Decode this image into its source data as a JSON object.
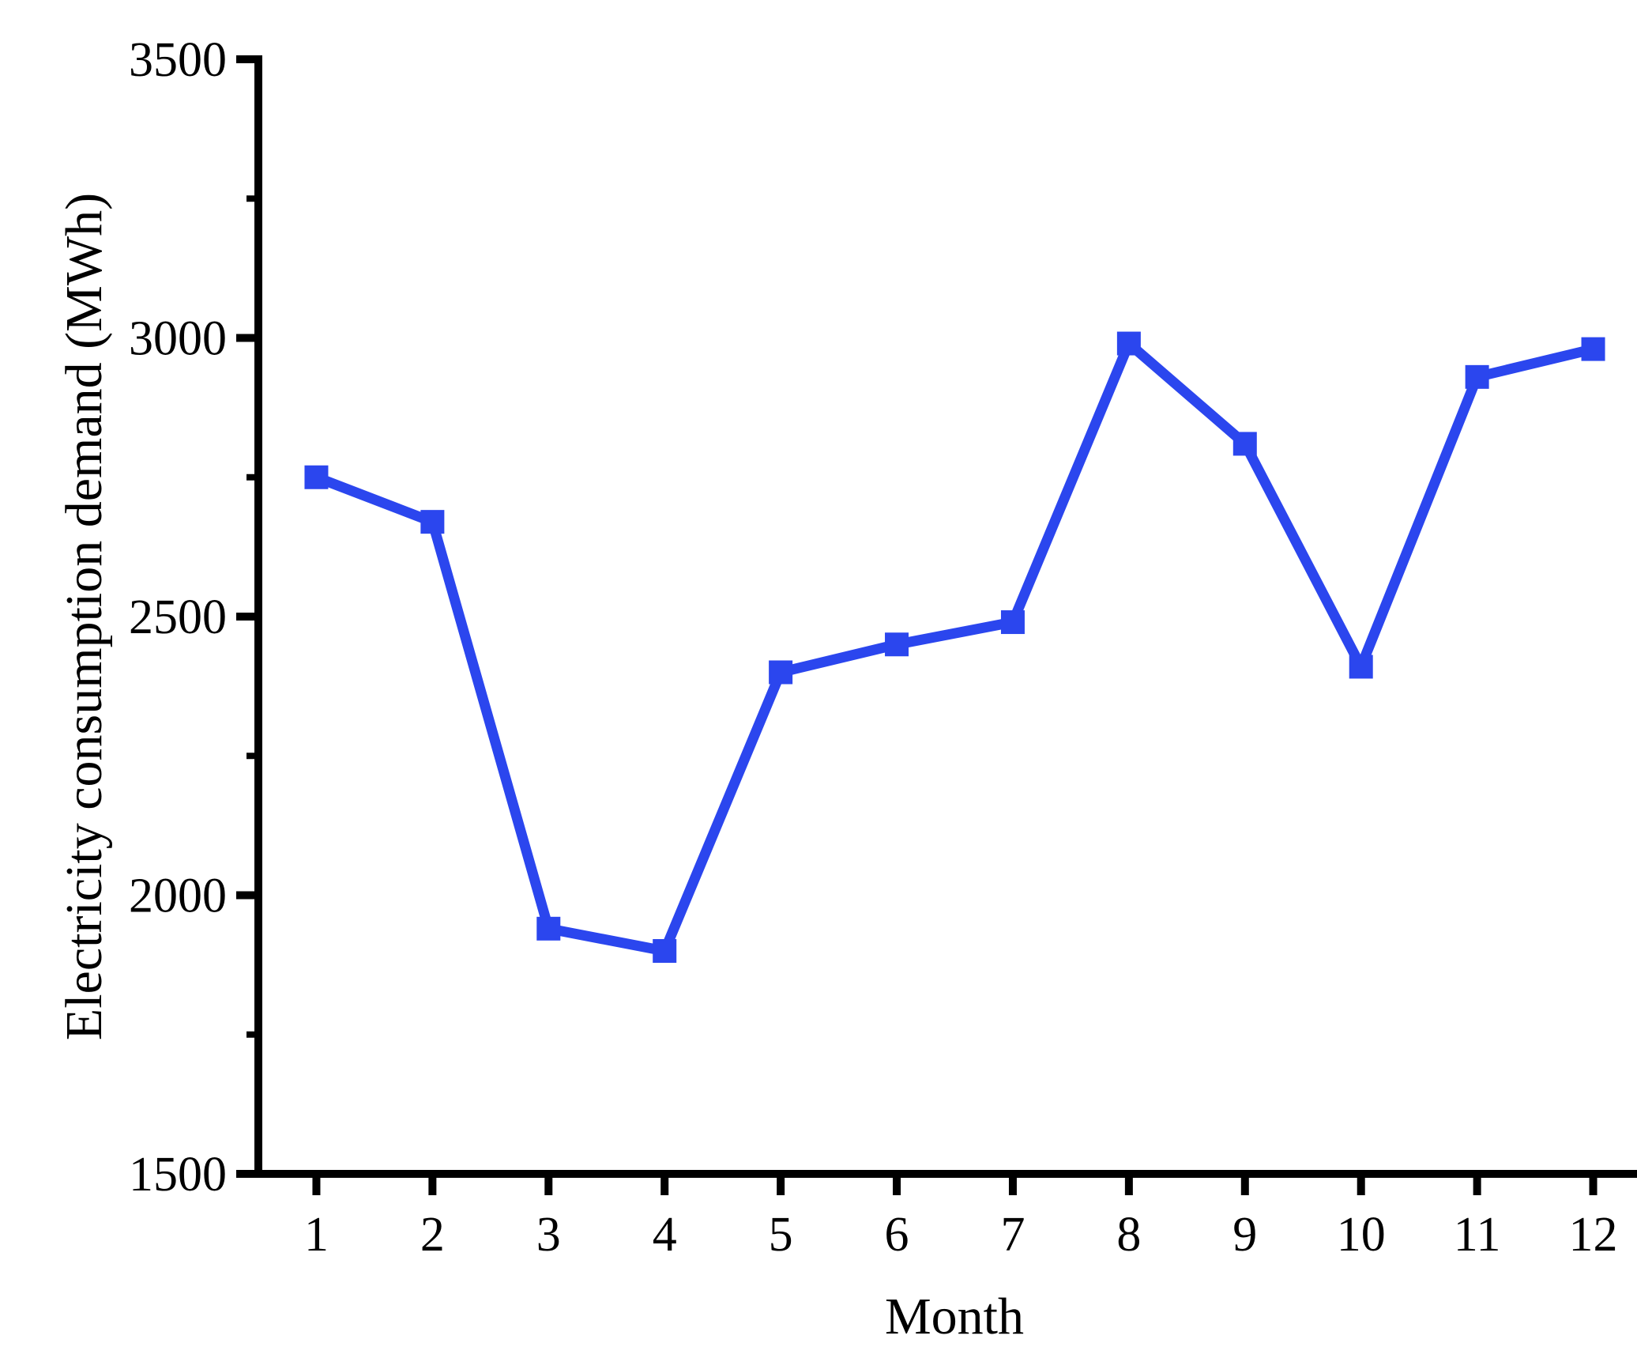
{
  "figure": {
    "background_color": "#ffffff",
    "axis_color": "#000000"
  },
  "chart_data": {
    "type": "line",
    "title": "",
    "xlabel": "Month",
    "ylabel": "Electricity consumption demand (MWh)",
    "x": [
      1,
      2,
      3,
      4,
      5,
      6,
      7,
      8,
      9,
      10,
      11,
      12
    ],
    "series": [
      {
        "name": "Electricity consumption demand",
        "values": [
          2750,
          2670,
          1940,
          1900,
          2400,
          2450,
          2490,
          2990,
          2810,
          2410,
          2930,
          2980
        ],
        "color": "#2b46ee",
        "marker": "square"
      }
    ],
    "xlim": [
      0.5,
      12.5
    ],
    "ylim": [
      1500,
      3500
    ],
    "x_tick_labels": [
      "1",
      "2",
      "3",
      "4",
      "5",
      "6",
      "7",
      "8",
      "9",
      "10",
      "11",
      "12"
    ],
    "y_ticks": [
      1500,
      2000,
      2500,
      3000,
      3500
    ],
    "y_tick_labels": [
      "1500",
      "2000",
      "2500",
      "3000",
      "3500"
    ],
    "y_minor_tick_step": 250,
    "grid": false,
    "legend": "none"
  }
}
